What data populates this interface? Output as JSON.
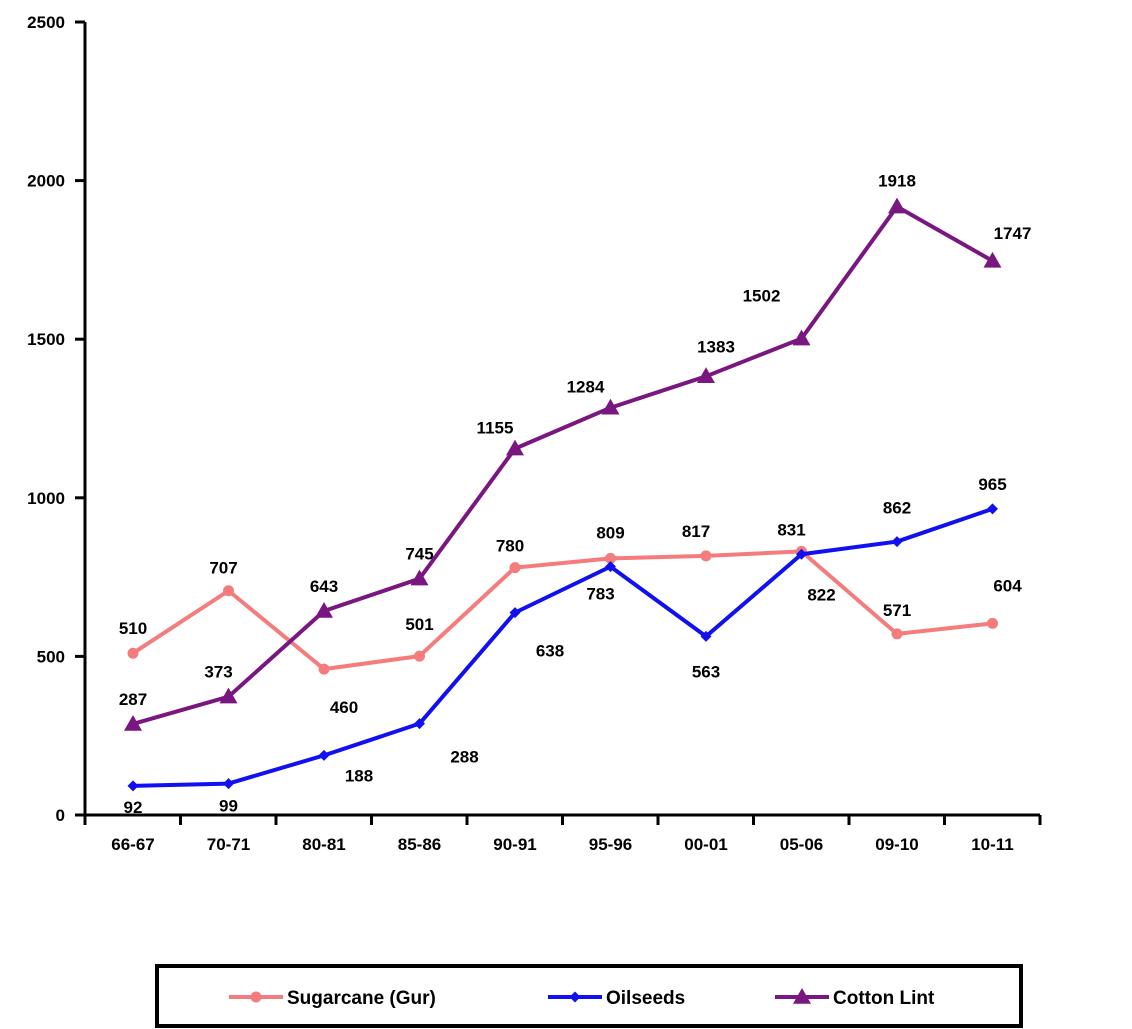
{
  "chart_data": {
    "type": "line",
    "categories": [
      "66-67",
      "70-71",
      "80-81",
      "85-86",
      "90-91",
      "95-96",
      "00-01",
      "05-06",
      "09-10",
      "10-11"
    ],
    "ylim": [
      0,
      2500
    ],
    "yticks": [
      0,
      500,
      1000,
      1500,
      2000,
      2500
    ],
    "grid": false,
    "legend_position": "bottom",
    "series": [
      {
        "name": "Sugarcane (Gur)",
        "color": "#f47c7c",
        "marker": "circle",
        "values": [
          510,
          707,
          460,
          501,
          780,
          809,
          817,
          831,
          571,
          604
        ]
      },
      {
        "name": "Oilseeds",
        "color": "#1010f0",
        "marker": "diamond",
        "values": [
          92,
          99,
          188,
          288,
          638,
          783,
          563,
          822,
          862,
          965
        ]
      },
      {
        "name": "Cotton Lint",
        "color": "#7a1680",
        "marker": "triangle",
        "values": [
          287,
          373,
          643,
          745,
          1155,
          1284,
          1383,
          1502,
          1918,
          1747
        ]
      }
    ]
  }
}
